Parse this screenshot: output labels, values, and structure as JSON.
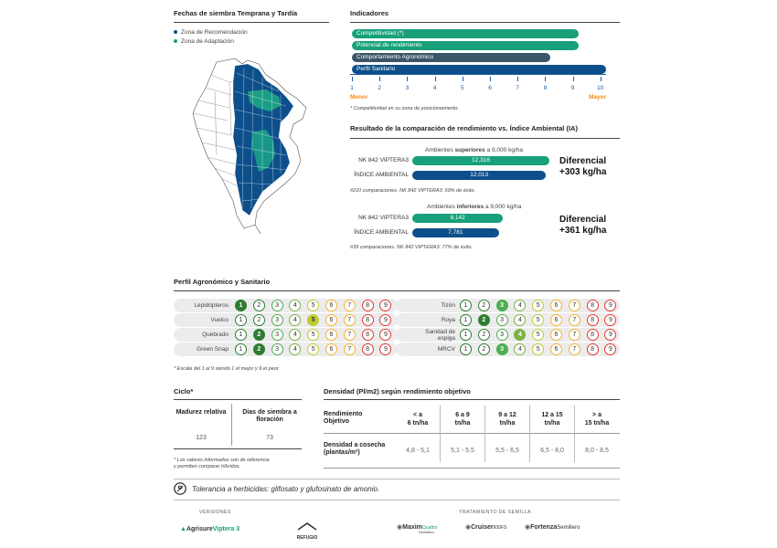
{
  "fechas": {
    "title": "Fechas de siembra Temprana y Tardía",
    "legend": [
      {
        "label": "Zona de Recomendación",
        "color": "#0d4f8a"
      },
      {
        "label": "Zona de Adaptación",
        "color": "#1a9e86"
      }
    ]
  },
  "indicadores": {
    "title": "Indicadores",
    "bars": [
      {
        "label": "Competitividad (*)",
        "value": 9,
        "color": "#17a07a"
      },
      {
        "label": "Potencial de rendimiento",
        "value": 9,
        "color": "#17a07a"
      },
      {
        "label": "Comportamiento Agronómico",
        "value": 8,
        "color": "#3b5566"
      },
      {
        "label": "Perfil Sanitario",
        "value": 10,
        "color": "#0d4f8a"
      }
    ],
    "ticks": [
      "1",
      "2",
      "3",
      "4",
      "5",
      "6",
      "7",
      "8",
      "9",
      "10"
    ],
    "menor": "Menor",
    "mayor": "Mayor",
    "note": "* Competitividad en su zona de posicionamiento."
  },
  "resultado": {
    "title": "Resultado de la comparación de rendimiento vs. Índice Ambiental (IA)",
    "superiores": {
      "heading_pre": "Ambientes",
      "heading_bold": "superiores",
      "heading_post": "a 9,000 kg/ha",
      "label_hybrid": "NK 842 VIPTERA3",
      "value_hybrid": "12,316",
      "num_hybrid": 12316,
      "label_ia": "ÍNDICE AMBIENTAL",
      "value_ia": "12,013",
      "num_ia": 12013,
      "diff_title": "Diferencial",
      "diff_value": "+303 kg/ha",
      "note": "#210 comparaciones. NK 842 VIPTERA3: 69% de éxito."
    },
    "inferiores": {
      "heading_pre": "Ambientes",
      "heading_bold": "inferiores",
      "heading_post": "a 9,000 kg/ha",
      "label_hybrid": "NK 842 VIPTERA3",
      "value_hybrid": "8,142",
      "num_hybrid": 8142,
      "label_ia": "ÍNDICE AMBIENTAL",
      "value_ia": "7,781",
      "num_ia": 7781,
      "diff_title": "Diferencial",
      "diff_value": "+361 kg/ha",
      "note": "#39 comparaciones. NK 842 VIPTERA3: 77% de éxito."
    }
  },
  "perfil": {
    "title": "Perfil Agronómico y Sanitario",
    "scale": [
      "1",
      "2",
      "3",
      "4",
      "5",
      "6",
      "7",
      "8",
      "9"
    ],
    "left": [
      {
        "label": "Lepidópteros",
        "score": 1
      },
      {
        "label": "Vuelco",
        "score": 5
      },
      {
        "label": "Quebrado",
        "score": 2
      },
      {
        "label": "Green Snap",
        "score": 2
      }
    ],
    "right": [
      {
        "label": "Tizón",
        "score": 3
      },
      {
        "label": "Roya",
        "score": 2
      },
      {
        "label": "Sanidad de espiga",
        "score": 4
      },
      {
        "label": "MRCV",
        "score": 3
      }
    ],
    "note": "* Escala del 1 al 9 siendo 1 el mejor y 9 el peor."
  },
  "ciclo": {
    "title": "Ciclo*",
    "col1": "Madurez relativa",
    "col2": "Días de siembra a floración",
    "val1": "123",
    "val2": "73",
    "note1": "* Los valores informados son de referencia",
    "note2": "y permiten comparar  híbridos."
  },
  "densidad": {
    "title": "Densidad (Pl/m2) según rendimiento objetivo",
    "row1_label": "Rendimiento Objetivo",
    "row2_label": "Densidad a cosecha (plantas/m²)",
    "cols": [
      {
        "head1": "< a",
        "head2": "6 tn/ha",
        "value": "4,8 - 5,1"
      },
      {
        "head1": "6 a 9",
        "head2": "tn/ha",
        "value": "5,1 - 5,5"
      },
      {
        "head1": "9 a 12",
        "head2": "tn/ha",
        "value": "5,5 - 6,5"
      },
      {
        "head1": "12 a 15",
        "head2": "tn/ha",
        "value": "6,5 - 8,0"
      },
      {
        "head1": "> a",
        "head2": "15 tn/ha",
        "value": "8,0 - 8,5"
      }
    ]
  },
  "tolerancia": "Tolerancia a herbicidas: glifosato y glufosinato de amonio.",
  "footer": {
    "versiones": "VERSIONES",
    "tratamiento": "TRATAMIENTO DE SEMILLA",
    "agrisure": "Agrisure",
    "viptera": "Viptera 3",
    "refugio": "REFUGIO",
    "maxim": "Maxim",
    "maxim_sub": "Quattro",
    "cruiser": "Cruiser",
    "cruiser_sub": "600FS",
    "fortenza": "Fortenza",
    "fortenza_sub": "Semillero",
    "semillero": "Semillero"
  }
}
